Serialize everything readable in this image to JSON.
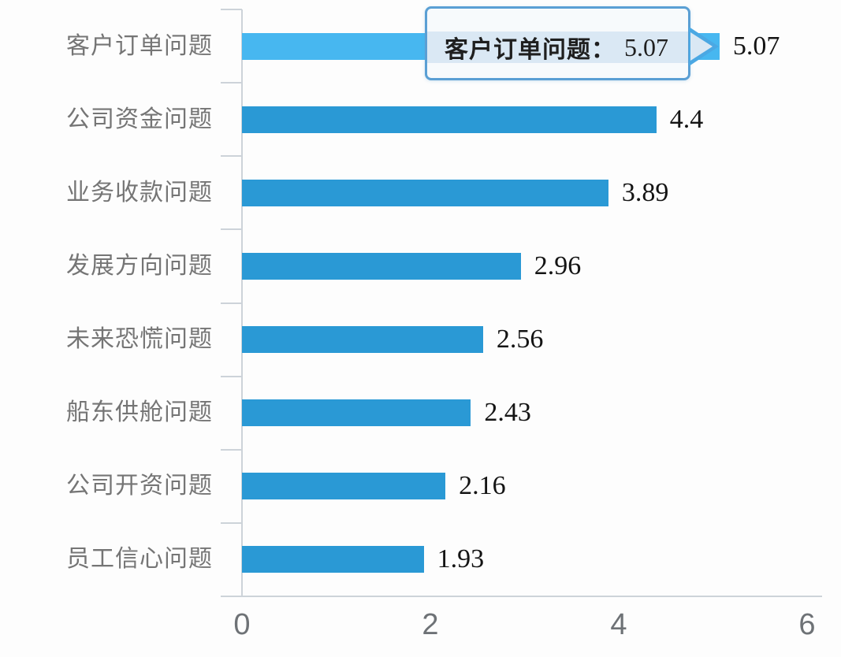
{
  "chart_data": {
    "type": "bar",
    "orientation": "horizontal",
    "title": "",
    "xlabel": "",
    "ylabel": "",
    "categories": [
      "客户订单问题",
      "公司资金问题",
      "业务收款问题",
      "发展方向问题",
      "未来恐慌问题",
      "船东供舱问题",
      "公司开资问题",
      "员工信心问题"
    ],
    "values": [
      5.07,
      4.4,
      3.89,
      2.96,
      2.56,
      2.43,
      2.16,
      1.93
    ],
    "value_labels": [
      "5.07",
      "4.4",
      "3.89",
      "2.96",
      "2.56",
      "2.43",
      "2.16",
      "1.93"
    ],
    "xlim": [
      0,
      6
    ],
    "x_ticks": [
      0,
      2,
      4,
      6
    ],
    "x_tick_labels": [
      "0",
      "2",
      "4",
      "6"
    ],
    "highlighted_index": 0,
    "grid": "off",
    "legend_position": "none"
  },
  "tooltip": {
    "label": "客户订单问题",
    "separator": "：",
    "value": "5.07"
  },
  "colors": {
    "bar": "#2a99d5",
    "bar_highlight": "#47b7f0",
    "tooltip_border": "#5a9fd4",
    "tooltip_band": "#dae8f4",
    "tooltip_bg": "#f7fafc",
    "arrow": "#4ba8e3",
    "axis": "#cdd3d9",
    "category_label": "#757575",
    "value_label": "#141414",
    "x_tick_label": "#6e7276"
  }
}
